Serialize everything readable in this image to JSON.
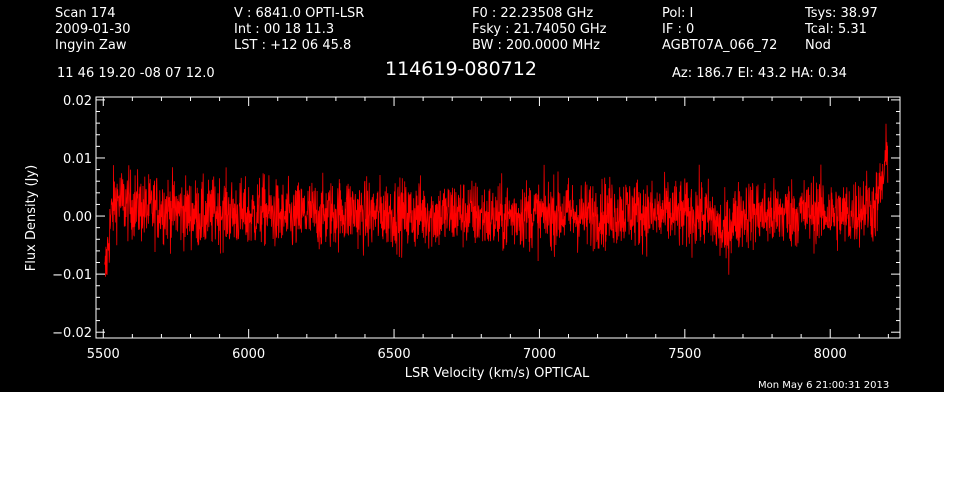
{
  "header": {
    "col1": [
      "Scan        174",
      "2009-01-30",
      "Ingyin Zaw"
    ],
    "col2": [
      "V   :     6841.0 OPTI-LSR",
      "Int  :  00 18 11.3",
      "LST : +12 06 45.8"
    ],
    "col3": [
      "F0   :  22.23508 GHz",
      "Fsky :  21.74050 GHz",
      "BW   : 200.0000 MHz"
    ],
    "col4": [
      "Pol:     I",
      "IF :     0",
      "AGBT07A_066_72"
    ],
    "col5": [
      "Tsys:    38.97",
      "Tcal:      5.31",
      "Nod"
    ],
    "coords": "11 46 19.20  -08 07 12.0",
    "source": "114619-080712",
    "azelha": "Az: 186.7   El:  43.2   HA:  0.34",
    "timestamp": "Mon May  6 21:00:31 2013"
  },
  "colors": {
    "background": "#000000",
    "axes": "#ffffff",
    "trace": "#ff0000"
  },
  "chart_data": {
    "type": "line",
    "title": "114619-080712",
    "xlabel": "LSR Velocity (km/s) OPTICAL",
    "ylabel": "Flux Density (Jy)",
    "xlim": [
      5475,
      8240
    ],
    "ylim": [
      -0.021,
      0.0205
    ],
    "x_ticks": [
      5500,
      6000,
      6500,
      7000,
      7500,
      8000
    ],
    "x_tick_labels": [
      "5500",
      "6000",
      "6500",
      "7000",
      "7500",
      "8000"
    ],
    "y_ticks": [
      -0.02,
      -0.01,
      0.0,
      0.01,
      0.02
    ],
    "y_tick_labels": [
      "−0.02",
      "−0.01",
      "0.00",
      "0.01",
      "0.02"
    ],
    "grid": false,
    "series": [
      {
        "x": [
          5505,
          5515,
          5525,
          5535,
          5550,
          5575,
          5600,
          5650,
          5700,
          5750,
          5800,
          5850,
          5900,
          5950,
          6000,
          6050,
          6100,
          6150,
          6200,
          6250,
          6300,
          6350,
          6400,
          6450,
          6500,
          6550,
          6600,
          6650,
          6700,
          6750,
          6800,
          6850,
          6900,
          6950,
          7000,
          7050,
          7100,
          7150,
          7200,
          7250,
          7300,
          7350,
          7400,
          7450,
          7500,
          7550,
          7600,
          7620,
          7640,
          7660,
          7700,
          7750,
          7800,
          7850,
          7900,
          7950,
          8000,
          8050,
          8100,
          8130,
          8150,
          8165,
          8180,
          8190,
          8198
        ],
        "y": [
          -0.011,
          -0.006,
          -0.001,
          0.002,
          0.003,
          0.002,
          0.002,
          0.001,
          0.0015,
          0.001,
          0.0005,
          0.0,
          0.001,
          0.0005,
          0.0,
          0.001,
          0.0,
          -0.0005,
          0.0005,
          0.0,
          0.0005,
          0.001,
          0.0,
          0.0005,
          0.0005,
          0.0,
          0.0005,
          0.0,
          0.0005,
          0.0005,
          0.0,
          -0.0005,
          0.0,
          0.0005,
          0.0,
          0.0005,
          0.0005,
          0.0,
          0.0005,
          0.0005,
          0.001,
          0.0005,
          0.0,
          0.0005,
          0.0,
          0.0005,
          -0.0005,
          -0.0025,
          -0.0035,
          -0.001,
          0.0005,
          0.0005,
          0.0,
          0.0005,
          0.0005,
          0.001,
          0.0005,
          0.0,
          0.001,
          0.002,
          0.001,
          0.003,
          0.006,
          0.009,
          0.011
        ],
        "noise_rms": 0.003
      }
    ]
  }
}
